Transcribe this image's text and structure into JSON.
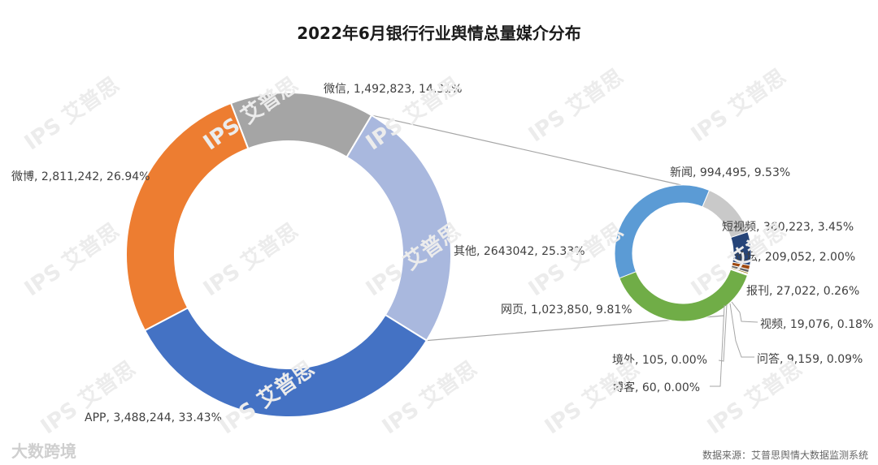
{
  "chart_data": {
    "type": "pie",
    "title": "2022年6月银行行业舆情总量媒介分布",
    "main_series": [
      {
        "label": "微信, 1,492,823, 14.31%",
        "value": 14.31,
        "color": "#a5a5a5"
      },
      {
        "label": "其他, 2643042, 25.33%",
        "value": 25.33,
        "color": "#a9b8de"
      },
      {
        "label": "APP, 3,488,244, 33.43%",
        "value": 33.43,
        "color": "#4472c4"
      },
      {
        "label": "微博, 2,811,242, 26.94%",
        "value": 26.94,
        "color": "#ed7d31"
      }
    ],
    "other_series": [
      {
        "label": "新闻, 994,495, 9.53%",
        "value": 9.53,
        "color": "#5b9bd5"
      },
      {
        "label": "短视频, 360,223, 3.45%",
        "value": 3.45,
        "color": "#c9c9c9"
      },
      {
        "label": "论坛, 209,052, 2.00%",
        "value": 2.0,
        "color": "#264478"
      },
      {
        "label": "报刊, 27,022, 0.26%",
        "value": 0.26,
        "color": "#9e480e"
      },
      {
        "label": "视频, 19,076, 0.18%",
        "value": 0.18,
        "color": "#636363"
      },
      {
        "label": "问答, 9,159, 0.09%",
        "value": 0.09,
        "color": "#997300"
      },
      {
        "label": "博客, 60, 0.00%",
        "value": 0.0,
        "color": "#4472c4"
      },
      {
        "label": "境外, 105, 0.00%",
        "value": 0.0,
        "color": "#ffc000"
      },
      {
        "label": "网页, 1,023,850, 9.81%",
        "value": 9.81,
        "color": "#70ad47"
      }
    ]
  },
  "watermark": "IPS 艾普思",
  "brand": "大数跨境",
  "source": "数据来源：艾普思舆情大数据监测系统"
}
